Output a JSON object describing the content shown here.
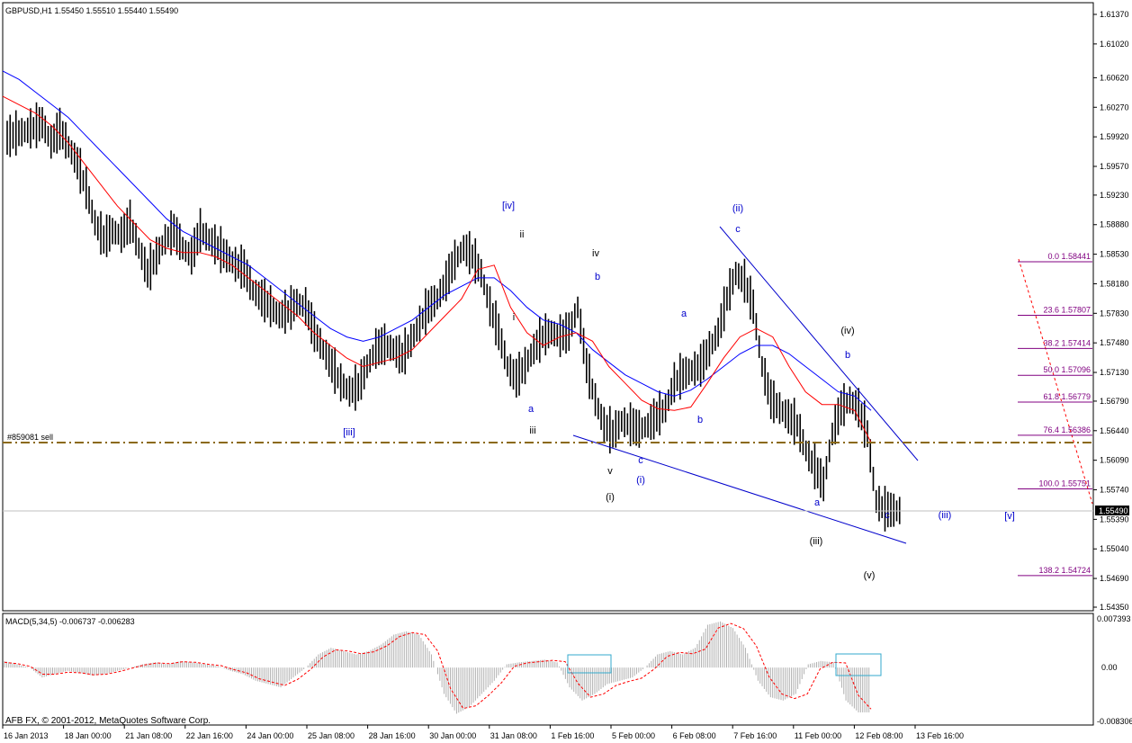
{
  "header": {
    "symbol_line": "GBPUSD,H1  1.55450 1.55510 1.55440 1.55490"
  },
  "order_line": {
    "label": "#859081 sell",
    "price": 1.5628,
    "color": "#8b6914"
  },
  "last_price": {
    "label": "1.55490",
    "value": 1.5549
  },
  "copyright": "AFB FX, © 2001-2012, MetaQuotes Software Corp.",
  "macd_panel": {
    "title": "MACD(5,34,5) -0.006737 -0.006283",
    "axis_labels": [
      "0.007393",
      "0.00",
      "-0.008306"
    ]
  },
  "colors": {
    "fast_ma": "#ff0000",
    "slow_ma": "#0000ff",
    "fib_text": "#800080",
    "wave_blue": "#0000cc",
    "wave_black": "#000000",
    "signal_line": "#ff0000",
    "highlight_box": "#33aacc",
    "bars": "#000000"
  },
  "chart_data": {
    "type": "candlestick",
    "symbol": "GBPUSD",
    "timeframe": "H1",
    "ohlc_last": {
      "open": 1.5545,
      "high": 1.5551,
      "low": 1.5544,
      "close": 1.5549
    },
    "y_ticks": [
      "1.61370",
      "1.61020",
      "1.60620",
      "1.60270",
      "1.59920",
      "1.59570",
      "1.59230",
      "1.58880",
      "1.58530",
      "1.58180",
      "1.57830",
      "1.57480",
      "1.57130",
      "1.56790",
      "1.56440",
      "1.56090",
      "1.55740",
      "1.55390",
      "1.55040",
      "1.54690",
      "1.54350"
    ],
    "y_range": [
      1.5435,
      1.6148
    ],
    "x_ticks": [
      "16 Jan 2013",
      "18 Jan 00:00",
      "21 Jan 08:00",
      "22 Jan 16:00",
      "24 Jan 00:00",
      "25 Jan 08:00",
      "28 Jan 16:00",
      "30 Jan 00:00",
      "31 Jan 08:00",
      "1 Feb 16:00",
      "5 Feb 00:00",
      "6 Feb 08:00",
      "7 Feb 16:00",
      "11 Feb 00:00",
      "12 Feb 08:00",
      "13 Feb 16:00"
    ],
    "price_series": [
      1.599,
      1.5995,
      1.5998,
      1.6002,
      1.6008,
      1.5985,
      1.6,
      1.598,
      1.596,
      1.593,
      1.589,
      1.587,
      1.588,
      1.5875,
      1.589,
      1.586,
      1.583,
      1.585,
      1.587,
      1.588,
      1.586,
      1.585,
      1.588,
      1.587,
      1.586,
      1.585,
      1.584,
      1.5835,
      1.581,
      1.58,
      1.579,
      1.578,
      1.5785,
      1.5795,
      1.579,
      1.576,
      1.574,
      1.572,
      1.57,
      1.569,
      1.5695,
      1.572,
      1.574,
      1.5745,
      1.574,
      1.573,
      1.575,
      1.577,
      1.579,
      1.58,
      1.582,
      1.5845,
      1.586,
      1.585,
      1.583,
      1.579,
      1.576,
      1.572,
      1.5705,
      1.572,
      1.574,
      1.5755,
      1.576,
      1.5755,
      1.576,
      1.579,
      1.572,
      1.568,
      1.565,
      1.564,
      1.5655,
      1.565,
      1.5645,
      1.565,
      1.566,
      1.567,
      1.57,
      1.571,
      1.5715,
      1.572,
      1.574,
      1.576,
      1.58,
      1.583,
      1.582,
      1.579,
      1.572,
      1.568,
      1.567,
      1.566,
      1.565,
      1.562,
      1.56,
      1.558,
      1.564,
      1.567,
      1.568,
      1.567,
      1.564,
      1.556,
      1.555,
      1.5549
    ],
    "fast_ma": [
      1.604,
      1.603,
      1.602,
      1.6005,
      1.5985,
      1.596,
      1.5935,
      1.591,
      1.589,
      1.587,
      1.586,
      1.5855,
      1.5855,
      1.585,
      1.584,
      1.5825,
      1.581,
      1.5795,
      1.578,
      1.576,
      1.5745,
      1.573,
      1.572,
      1.5725,
      1.573,
      1.574,
      1.576,
      1.578,
      1.58,
      1.5835,
      1.584,
      1.579,
      1.576,
      1.5745,
      1.5755,
      1.576,
      1.575,
      1.572,
      1.57,
      1.568,
      1.567,
      1.5668,
      1.5672,
      1.57,
      1.573,
      1.5755,
      1.5765,
      1.5755,
      1.572,
      1.569,
      1.5675,
      1.5675,
      1.5668,
      1.563
    ],
    "slow_ma": [
      1.607,
      1.606,
      1.6045,
      1.603,
      1.6015,
      1.5995,
      1.5975,
      1.5955,
      1.5935,
      1.5915,
      1.5895,
      1.588,
      1.587,
      1.586,
      1.585,
      1.584,
      1.5825,
      1.581,
      1.5795,
      1.578,
      1.5765,
      1.5755,
      1.575,
      1.5755,
      1.5765,
      1.5775,
      1.579,
      1.5805,
      1.5815,
      1.5825,
      1.5825,
      1.581,
      1.579,
      1.5775,
      1.577,
      1.576,
      1.574,
      1.5725,
      1.571,
      1.57,
      1.569,
      1.5685,
      1.5692,
      1.5705,
      1.572,
      1.5735,
      1.5745,
      1.5745,
      1.5735,
      1.572,
      1.5705,
      1.569,
      1.5685,
      1.5668
    ],
    "fibonacci_levels": [
      {
        "label": "0.0 1.58441",
        "value": 1.58441
      },
      {
        "label": "23.6 1.57807",
        "value": 1.57807
      },
      {
        "label": "38.2 1.57414",
        "value": 1.57414
      },
      {
        "label": "50.0 1.57096",
        "value": 1.57096
      },
      {
        "label": "61.8 1.56779",
        "value": 1.56779
      },
      {
        "label": "76.4 1.56386",
        "value": 1.56386
      },
      {
        "label": "100.0 1.55751",
        "value": 1.55751
      },
      {
        "label": "138.2 1.54724",
        "value": 1.54724
      }
    ],
    "wave_labels": [
      {
        "text": "[iv]",
        "color": "blue"
      },
      {
        "text": "ii",
        "color": "black"
      },
      {
        "text": "iv",
        "color": "black"
      },
      {
        "text": "b",
        "color": "blue"
      },
      {
        "text": "i",
        "color": "black"
      },
      {
        "text": "(ii)",
        "color": "blue"
      },
      {
        "text": "c",
        "color": "blue"
      },
      {
        "text": "a",
        "color": "blue"
      },
      {
        "text": "(iv)",
        "color": "black"
      },
      {
        "text": "b",
        "color": "blue"
      },
      {
        "text": "a",
        "color": "blue"
      },
      {
        "text": "iii",
        "color": "black"
      },
      {
        "text": "b",
        "color": "blue"
      },
      {
        "text": "[iii]",
        "color": "blue"
      },
      {
        "text": "v",
        "color": "black"
      },
      {
        "text": "c",
        "color": "blue"
      },
      {
        "text": "(i)",
        "color": "black"
      },
      {
        "text": "(i)",
        "color": "blue"
      },
      {
        "text": "a",
        "color": "blue"
      },
      {
        "text": "c",
        "color": "blue"
      },
      {
        "text": "(iii)",
        "color": "blue"
      },
      {
        "text": "[v]",
        "color": "blue"
      },
      {
        "text": "(iii)",
        "color": "black"
      },
      {
        "text": "(v)",
        "color": "black"
      }
    ],
    "macd_histogram": [
      0.001,
      0.0005,
      0.0,
      -0.0015,
      -0.001,
      -0.0005,
      -0.0008,
      -0.0012,
      -0.001,
      -0.0005,
      0.0,
      0.0005,
      0.0008,
      0.0005,
      0.001,
      0.0008,
      0.0005,
      0.0002,
      -0.0005,
      -0.001,
      -0.002,
      -0.0025,
      -0.003,
      -0.0015,
      0.0,
      0.002,
      0.003,
      0.0025,
      0.002,
      0.0025,
      0.0035,
      0.005,
      0.0055,
      0.005,
      0.002,
      -0.004,
      -0.007,
      -0.006,
      -0.004,
      -0.002,
      0.0005,
      0.0008,
      0.001,
      0.0012,
      0.0008,
      -0.003,
      -0.005,
      -0.004,
      -0.0025,
      -0.002,
      -0.0015,
      0.0,
      0.002,
      0.0025,
      0.002,
      0.003,
      0.0065,
      0.007,
      0.006,
      0.003,
      -0.002,
      -0.0045,
      -0.005,
      -0.004,
      0.0005,
      0.001,
      0.0008,
      -0.005,
      -0.0068
    ],
    "macd_signal": [
      0.0008,
      0.0006,
      0.0002,
      -0.001,
      -0.001,
      -0.0007,
      -0.0008,
      -0.0011,
      -0.001,
      -0.0006,
      -0.0001,
      0.0004,
      0.0007,
      0.0006,
      0.0009,
      0.0008,
      0.0005,
      0.0003,
      -0.0003,
      -0.0008,
      -0.0017,
      -0.0022,
      -0.0027,
      -0.0018,
      -0.0003,
      0.0016,
      0.0027,
      0.0025,
      0.0021,
      0.0024,
      0.0033,
      0.0047,
      0.0053,
      0.005,
      0.0025,
      -0.0032,
      -0.0062,
      -0.0058,
      -0.0042,
      -0.0023,
      0.0002,
      0.0007,
      0.0009,
      0.0011,
      0.0009,
      -0.0024,
      -0.0045,
      -0.004,
      -0.0027,
      -0.0021,
      -0.0016,
      -0.0002,
      0.0017,
      0.0023,
      0.0021,
      0.0028,
      0.006,
      0.0067,
      0.0059,
      0.0033,
      -0.0014,
      -0.004,
      -0.0047,
      -0.004,
      -0.0002,
      0.0008,
      0.0007,
      -0.0042,
      -0.0063
    ],
    "macd_range": [
      -0.008306,
      0.007393
    ],
    "grid": false,
    "legend": "none"
  }
}
